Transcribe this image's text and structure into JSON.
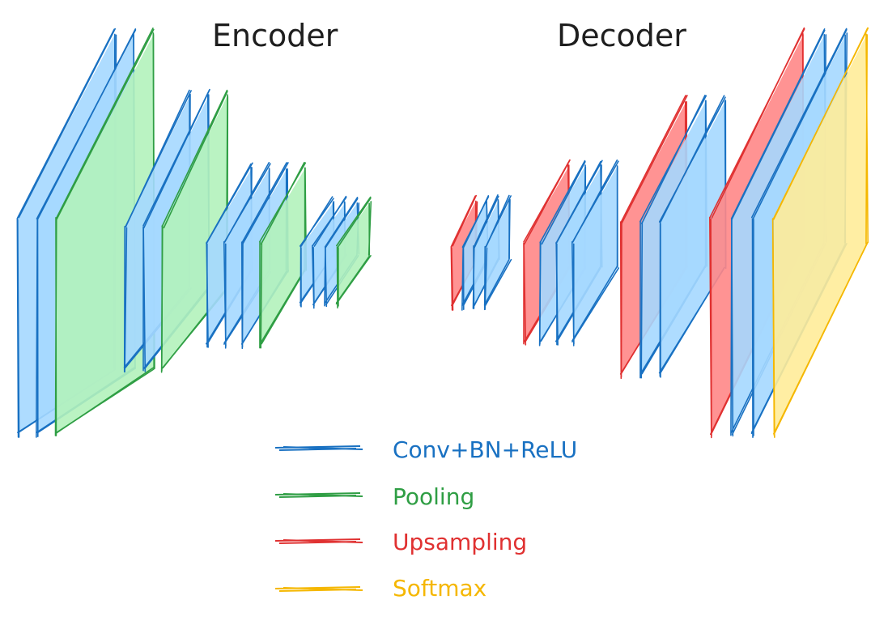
{
  "titles": {
    "encoder": "Encoder",
    "decoder": "Decoder"
  },
  "colors": {
    "conv_stroke": "#1971c2",
    "conv_fill": "#a5d8ff",
    "pool_stroke": "#2f9e44",
    "pool_fill": "#b2f2bb",
    "up_stroke": "#e03131",
    "up_fill": "#ff8787",
    "softmax_stroke": "#f5b700",
    "softmax_fill": "#ffec99"
  },
  "legend": [
    {
      "key": "conv",
      "label": "Conv+BN+ReLU"
    },
    {
      "key": "pool",
      "label": "Pooling"
    },
    {
      "key": "up",
      "label": "Upsampling"
    },
    {
      "key": "softmax",
      "label": "Softmax"
    }
  ],
  "encoder_blocks": [
    [
      "conv",
      "conv",
      "pool"
    ],
    [
      "conv",
      "conv",
      "pool"
    ],
    [
      "conv",
      "conv",
      "conv",
      "pool"
    ],
    [
      "conv",
      "conv",
      "conv",
      "pool"
    ]
  ],
  "decoder_blocks": [
    [
      "up",
      "conv",
      "conv",
      "conv"
    ],
    [
      "up",
      "conv",
      "conv",
      "conv"
    ],
    [
      "up",
      "conv",
      "conv"
    ],
    [
      "up",
      "conv",
      "conv",
      "softmax"
    ]
  ]
}
